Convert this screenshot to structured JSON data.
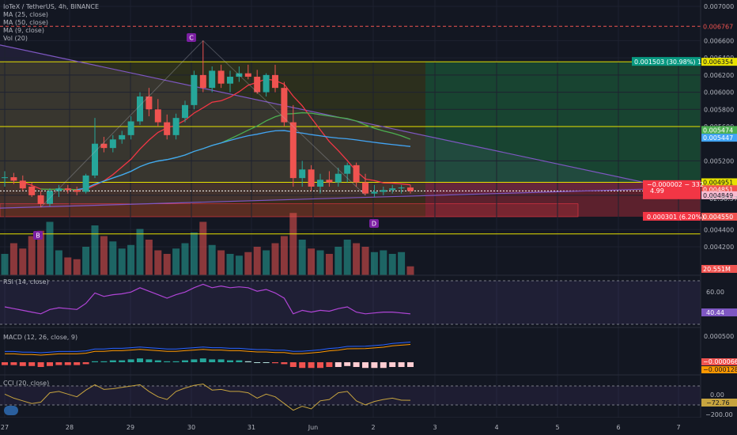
{
  "legend": {
    "symbol": "IoTeX / TetherUS, 4h, BINANCE",
    "ma25": "MA (25, close)",
    "ma50": "MA (50, close)",
    "ma9": "MA (9, close)",
    "vol": "Vol (20)"
  },
  "indicators": {
    "rsi": "RSI (14, close)",
    "macd": "MACD (12, 26, close, 9)",
    "cci": "CCI (20, close)"
  },
  "pattern_labels": [
    "B",
    "C",
    "D"
  ],
  "price_axis": {
    "ticks": [
      "0.007000",
      "0.006600",
      "0.006400",
      "0.006200",
      "0.006000",
      "0.005800",
      "0.005600",
      "0.005200",
      "0.004800",
      "0.004400",
      "0.004200"
    ],
    "labels": {
      "top_line": "0.006767",
      "target": "0.006354",
      "ma_a": "0.005474",
      "ma_b": "0.005447",
      "entry": "0.004951",
      "last": "0.004851",
      "ma_c": "0.004849",
      "stop": "0.004550",
      "volume": "20.551M"
    },
    "position_box": {
      "line1": "−0.000002 − 332",
      "line2": "4.99",
      "line3": "02:38:57"
    },
    "target_label": "0.001503 (30.98%) 1",
    "stop_label": "0.000301 (6.20%)"
  },
  "rsi_axis": {
    "ticks": [
      "60.00"
    ],
    "value": "40.44"
  },
  "macd_axis": {
    "ticks": [
      "0.000500"
    ],
    "v1": "−0.000066",
    "v2": "−0.000128"
  },
  "cci_axis": {
    "ticks": [
      "0.00",
      "−200.00"
    ],
    "value": "−72.76"
  },
  "x_axis": [
    "27",
    "28",
    "29",
    "30",
    "31",
    "Jun",
    "2",
    "3",
    "4",
    "5",
    "6",
    "7"
  ],
  "colors": {
    "up": "#26a69a",
    "down": "#ef5350",
    "ma9": "#f23645",
    "ma25": "#4caf50",
    "ma50": "#42a5f5",
    "triangle": "#7e57c2",
    "yellow": "#e7e200"
  },
  "chart_data": {
    "type": "candlestick",
    "timeframe": "4h",
    "candles": [
      {
        "o": 0.005,
        "h": 0.00508,
        "l": 0.0049,
        "c": 0.00501
      },
      {
        "o": 0.00501,
        "h": 0.00506,
        "l": 0.00493,
        "c": 0.00497
      },
      {
        "o": 0.00497,
        "h": 0.00503,
        "l": 0.00485,
        "c": 0.00488
      },
      {
        "o": 0.0049,
        "h": 0.00495,
        "l": 0.00478,
        "c": 0.0048
      },
      {
        "o": 0.0048,
        "h": 0.00485,
        "l": 0.00466,
        "c": 0.0047
      },
      {
        "o": 0.0047,
        "h": 0.00488,
        "l": 0.00467,
        "c": 0.00485
      },
      {
        "o": 0.00485,
        "h": 0.00492,
        "l": 0.00478,
        "c": 0.00488
      },
      {
        "o": 0.00488,
        "h": 0.00492,
        "l": 0.00482,
        "c": 0.00486
      },
      {
        "o": 0.00486,
        "h": 0.0049,
        "l": 0.0048,
        "c": 0.00484
      },
      {
        "o": 0.00484,
        "h": 0.00505,
        "l": 0.00482,
        "c": 0.00503
      },
      {
        "o": 0.00503,
        "h": 0.0057,
        "l": 0.005,
        "c": 0.0054
      },
      {
        "o": 0.0054,
        "h": 0.00548,
        "l": 0.0053,
        "c": 0.00535
      },
      {
        "o": 0.00535,
        "h": 0.0055,
        "l": 0.0053,
        "c": 0.00545
      },
      {
        "o": 0.00545,
        "h": 0.00555,
        "l": 0.0054,
        "c": 0.0055
      },
      {
        "o": 0.0055,
        "h": 0.00572,
        "l": 0.00545,
        "c": 0.00566
      },
      {
        "o": 0.00566,
        "h": 0.006,
        "l": 0.00562,
        "c": 0.00595
      },
      {
        "o": 0.00595,
        "h": 0.00605,
        "l": 0.00572,
        "c": 0.0058
      },
      {
        "o": 0.0058,
        "h": 0.00592,
        "l": 0.0056,
        "c": 0.00565
      },
      {
        "o": 0.00565,
        "h": 0.00574,
        "l": 0.00545,
        "c": 0.0055
      },
      {
        "o": 0.0055,
        "h": 0.00575,
        "l": 0.00545,
        "c": 0.0057
      },
      {
        "o": 0.0057,
        "h": 0.0059,
        "l": 0.00565,
        "c": 0.00585
      },
      {
        "o": 0.00585,
        "h": 0.00625,
        "l": 0.0058,
        "c": 0.0062
      },
      {
        "o": 0.0062,
        "h": 0.0066,
        "l": 0.006,
        "c": 0.00605
      },
      {
        "o": 0.00605,
        "h": 0.0063,
        "l": 0.006,
        "c": 0.00625
      },
      {
        "o": 0.00625,
        "h": 0.00632,
        "l": 0.00605,
        "c": 0.0061
      },
      {
        "o": 0.0061,
        "h": 0.00625,
        "l": 0.006,
        "c": 0.00618
      },
      {
        "o": 0.00618,
        "h": 0.0063,
        "l": 0.00612,
        "c": 0.00622
      },
      {
        "o": 0.00622,
        "h": 0.00632,
        "l": 0.00615,
        "c": 0.00618
      },
      {
        "o": 0.00618,
        "h": 0.00626,
        "l": 0.00598,
        "c": 0.006
      },
      {
        "o": 0.006,
        "h": 0.00622,
        "l": 0.00595,
        "c": 0.0062
      },
      {
        "o": 0.0062,
        "h": 0.00632,
        "l": 0.006,
        "c": 0.00605
      },
      {
        "o": 0.00605,
        "h": 0.00612,
        "l": 0.0056,
        "c": 0.00565
      },
      {
        "o": 0.00565,
        "h": 0.00585,
        "l": 0.0049,
        "c": 0.005
      },
      {
        "o": 0.005,
        "h": 0.0052,
        "l": 0.0049,
        "c": 0.0051
      },
      {
        "o": 0.0051,
        "h": 0.00515,
        "l": 0.00485,
        "c": 0.0049
      },
      {
        "o": 0.0049,
        "h": 0.00505,
        "l": 0.00482,
        "c": 0.00498
      },
      {
        "o": 0.00498,
        "h": 0.00508,
        "l": 0.0049,
        "c": 0.00495
      },
      {
        "o": 0.00495,
        "h": 0.00512,
        "l": 0.0049,
        "c": 0.00505
      },
      {
        "o": 0.00505,
        "h": 0.00518,
        "l": 0.00495,
        "c": 0.00515
      },
      {
        "o": 0.00515,
        "h": 0.00518,
        "l": 0.0049,
        "c": 0.00495
      },
      {
        "o": 0.00495,
        "h": 0.00505,
        "l": 0.0048,
        "c": 0.00482
      },
      {
        "o": 0.00482,
        "h": 0.00492,
        "l": 0.00478,
        "c": 0.00484
      },
      {
        "o": 0.00484,
        "h": 0.0049,
        "l": 0.0048,
        "c": 0.00486
      },
      {
        "o": 0.00486,
        "h": 0.00492,
        "l": 0.00482,
        "c": 0.00488
      },
      {
        "o": 0.00488,
        "h": 0.00492,
        "l": 0.00482,
        "c": 0.00489
      },
      {
        "o": 0.00489,
        "h": 0.00492,
        "l": 0.00482,
        "c": 0.00485
      }
    ],
    "volume_m": [
      12,
      18,
      15,
      22,
      25,
      30,
      14,
      10,
      9,
      16,
      28,
      22,
      19,
      15,
      17,
      26,
      20,
      14,
      12,
      15,
      18,
      24,
      30,
      17,
      14,
      12,
      11,
      13,
      16,
      14,
      18,
      22,
      35,
      20,
      15,
      14,
      12,
      16,
      20,
      18,
      16,
      13,
      14,
      12,
      13,
      5
    ],
    "levels": {
      "target": 0.006354,
      "entry": 0.004951,
      "stop": 0.00455,
      "top_line": 0.006767,
      "mid_yellow": 0.0056
    },
    "pattern": [
      "B",
      "C",
      "D"
    ],
    "rsi_last": 40.44,
    "macd_last": [
      -6.6e-05,
      -0.000128
    ],
    "cci_last": -72.76
  }
}
